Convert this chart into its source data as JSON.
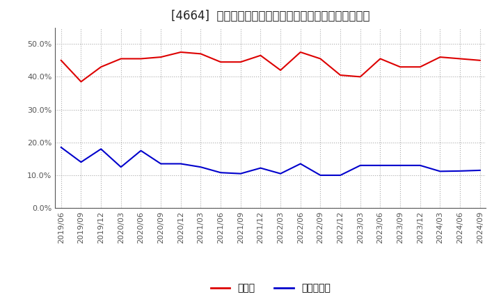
{
  "title": "[4664]  現預金、有利子負債の総資産に対する比率の推移",
  "x_labels": [
    "2019/06",
    "2019/09",
    "2019/12",
    "2020/03",
    "2020/06",
    "2020/09",
    "2020/12",
    "2021/03",
    "2021/06",
    "2021/09",
    "2021/12",
    "2022/03",
    "2022/06",
    "2022/09",
    "2022/12",
    "2023/03",
    "2023/06",
    "2023/09",
    "2023/12",
    "2024/03",
    "2024/06",
    "2024/09"
  ],
  "cash_ratio": [
    0.45,
    0.385,
    0.43,
    0.455,
    0.455,
    0.46,
    0.475,
    0.47,
    0.445,
    0.445,
    0.465,
    0.42,
    0.475,
    0.455,
    0.405,
    0.4,
    0.455,
    0.43,
    0.43,
    0.46,
    0.455,
    0.45
  ],
  "debt_ratio": [
    0.185,
    0.14,
    0.18,
    0.125,
    0.175,
    0.135,
    0.135,
    0.125,
    0.108,
    0.105,
    0.122,
    0.105,
    0.135,
    0.1,
    0.1,
    0.13,
    0.13,
    0.13,
    0.13,
    0.112,
    0.113,
    0.115
  ],
  "cash_color": "#dd0000",
  "debt_color": "#0000cc",
  "background_color": "#ffffff",
  "grid_color": "#aaaaaa",
  "ylim": [
    0.0,
    0.55
  ],
  "yticks": [
    0.0,
    0.1,
    0.2,
    0.3,
    0.4,
    0.5
  ],
  "legend_cash": "現預金",
  "legend_debt": "有利子負債",
  "title_fontsize": 12,
  "tick_fontsize": 8,
  "legend_fontsize": 10
}
